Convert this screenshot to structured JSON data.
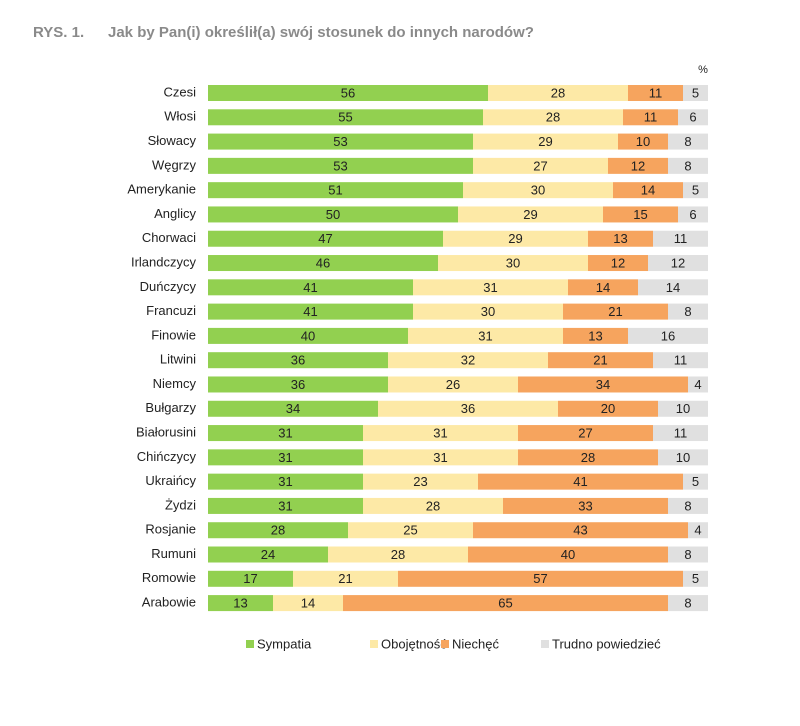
{
  "chart_data": {
    "type": "stacked-bar-horizontal",
    "figure_label": "RYS. 1.",
    "title": "Jak by Pan(i) określił(a) swój stosunek do innych narodów?",
    "unit": "%",
    "categories": [
      "Czesi",
      "Włosi",
      "Słowacy",
      "Węgrzy",
      "Amerykanie",
      "Anglicy",
      "Chorwaci",
      "Irlandczycy",
      "Duńczycy",
      "Francuzi",
      "Finowie",
      "Litwini",
      "Niemcy",
      "Bułgarzy",
      "Białorusini",
      "Chińczycy",
      "Ukraińcy",
      "Żydzi",
      "Rosjanie",
      "Rumuni",
      "Romowie",
      "Arabowie"
    ],
    "series": [
      {
        "name": "Sympatia",
        "color": "#92d050",
        "values": [
          56,
          55,
          53,
          53,
          51,
          50,
          47,
          46,
          41,
          41,
          40,
          36,
          36,
          34,
          31,
          31,
          31,
          31,
          28,
          24,
          17,
          13
        ]
      },
      {
        "name": "Obojętność",
        "color": "#fde9a6",
        "values": [
          28,
          28,
          29,
          27,
          30,
          29,
          29,
          30,
          31,
          30,
          31,
          32,
          26,
          36,
          31,
          31,
          23,
          28,
          25,
          28,
          21,
          14
        ]
      },
      {
        "name": "Niechęć",
        "color": "#f6a45e",
        "values": [
          11,
          11,
          10,
          12,
          14,
          15,
          13,
          12,
          14,
          21,
          13,
          21,
          34,
          20,
          27,
          28,
          41,
          33,
          43,
          40,
          57,
          65
        ]
      },
      {
        "name": "Trudno powiedzieć",
        "color": "#e0e0e0",
        "values": [
          5,
          6,
          8,
          8,
          5,
          6,
          11,
          12,
          14,
          8,
          16,
          11,
          4,
          10,
          11,
          10,
          5,
          8,
          4,
          8,
          5,
          8
        ]
      }
    ],
    "xlim": [
      0,
      100
    ]
  }
}
